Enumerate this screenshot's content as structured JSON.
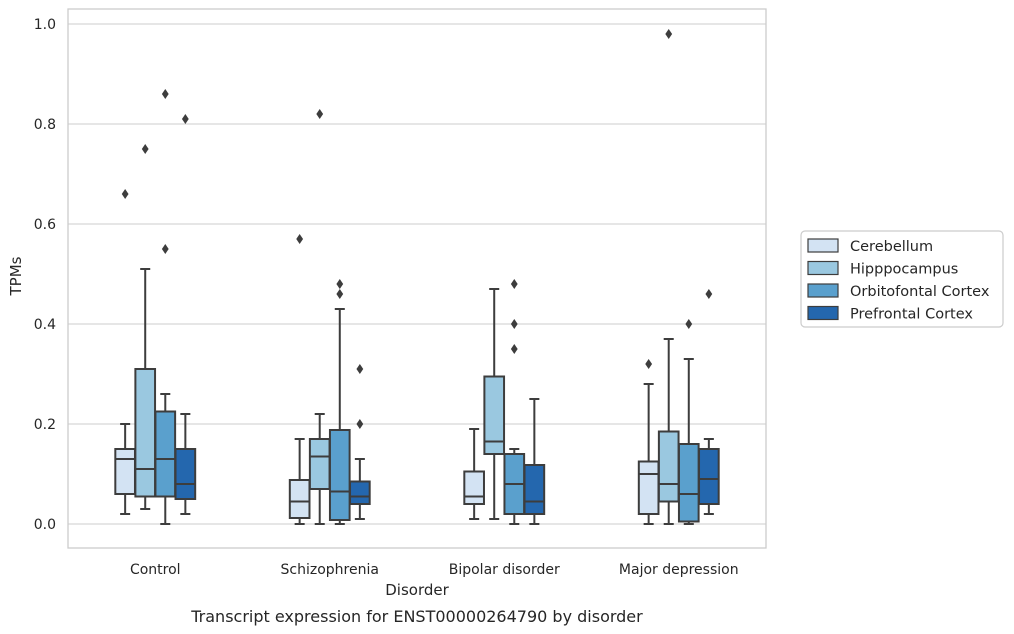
{
  "chart_data": {
    "type": "box",
    "title": "",
    "caption": "Transcript expression for ENST00000264790 by disorder",
    "xlabel": "Disorder",
    "ylabel": "TPMs",
    "ylim": [
      -0.045,
      1.03
    ],
    "yticks": [
      0.0,
      0.2,
      0.4,
      0.6,
      0.8,
      1.0
    ],
    "ytick_labels": [
      "0.0",
      "0.2",
      "0.4",
      "0.6",
      "0.8",
      "1.0"
    ],
    "grid": "horizontal",
    "legend_position": "right",
    "categories": [
      "Control",
      "Schizophrenia",
      "Bipolar disorder",
      "Major depression"
    ],
    "series": [
      {
        "name": "Cerebellum",
        "color": "#d3e3f3",
        "boxes": [
          {
            "whisker_low": 0.02,
            "q1": 0.06,
            "median": 0.13,
            "q3": 0.15,
            "whisker_high": 0.2,
            "outliers": [
              0.66
            ]
          },
          {
            "whisker_low": 0.0,
            "q1": 0.012,
            "median": 0.045,
            "q3": 0.088,
            "whisker_high": 0.17,
            "outliers": [
              0.57
            ]
          },
          {
            "whisker_low": 0.01,
            "q1": 0.04,
            "median": 0.055,
            "q3": 0.105,
            "whisker_high": 0.19,
            "outliers": []
          },
          {
            "whisker_low": 0.0,
            "q1": 0.02,
            "median": 0.1,
            "q3": 0.125,
            "whisker_high": 0.28,
            "outliers": [
              0.32
            ]
          }
        ]
      },
      {
        "name": "Hipppocampus",
        "color": "#9ac8e0",
        "boxes": [
          {
            "whisker_low": 0.03,
            "q1": 0.055,
            "median": 0.11,
            "q3": 0.31,
            "whisker_high": 0.51,
            "outliers": [
              0.75
            ]
          },
          {
            "whisker_low": 0.0,
            "q1": 0.07,
            "median": 0.135,
            "q3": 0.17,
            "whisker_high": 0.22,
            "outliers": [
              0.82
            ]
          },
          {
            "whisker_low": 0.01,
            "q1": 0.14,
            "median": 0.165,
            "q3": 0.295,
            "whisker_high": 0.47,
            "outliers": []
          },
          {
            "whisker_low": 0.0,
            "q1": 0.045,
            "median": 0.08,
            "q3": 0.185,
            "whisker_high": 0.37,
            "outliers": [
              0.98
            ]
          }
        ]
      },
      {
        "name": "Orbitofontal Cortex",
        "color": "#5aa0cd",
        "boxes": [
          {
            "whisker_low": 0.0,
            "q1": 0.055,
            "median": 0.13,
            "q3": 0.225,
            "whisker_high": 0.26,
            "outliers": [
              0.55,
              0.86
            ]
          },
          {
            "whisker_low": 0.0,
            "q1": 0.008,
            "median": 0.065,
            "q3": 0.188,
            "whisker_high": 0.43,
            "outliers": [
              0.46,
              0.48
            ]
          },
          {
            "whisker_low": 0.0,
            "q1": 0.02,
            "median": 0.08,
            "q3": 0.14,
            "whisker_high": 0.15,
            "outliers": [
              0.35,
              0.4,
              0.48
            ]
          },
          {
            "whisker_low": 0.0,
            "q1": 0.005,
            "median": 0.06,
            "q3": 0.16,
            "whisker_high": 0.33,
            "outliers": [
              0.4
            ]
          }
        ]
      },
      {
        "name": "Prefrontal Cortex",
        "color": "#2467ae",
        "boxes": [
          {
            "whisker_low": 0.02,
            "q1": 0.05,
            "median": 0.08,
            "q3": 0.15,
            "whisker_high": 0.22,
            "outliers": [
              0.81
            ]
          },
          {
            "whisker_low": 0.01,
            "q1": 0.04,
            "median": 0.055,
            "q3": 0.085,
            "whisker_high": 0.13,
            "outliers": [
              0.2,
              0.31
            ]
          },
          {
            "whisker_low": 0.0,
            "q1": 0.02,
            "median": 0.045,
            "q3": 0.118,
            "whisker_high": 0.25,
            "outliers": []
          },
          {
            "whisker_low": 0.02,
            "q1": 0.04,
            "median": 0.09,
            "q3": 0.15,
            "whisker_high": 0.17,
            "outliers": [
              0.46
            ]
          }
        ]
      }
    ]
  }
}
